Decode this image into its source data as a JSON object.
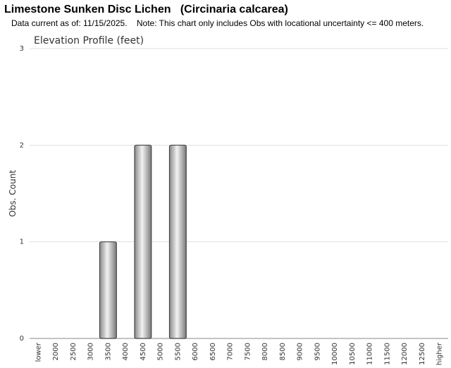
{
  "header": {
    "title": "Limestone Sunken Disc Lichen   (Circinaria calcarea)",
    "subtitle": "Data current as of: 11/15/2025.    Note: This chart only includes Obs with locational uncertainty <= 400 meters."
  },
  "chart_data": {
    "type": "bar",
    "title": "Elevation Profile (feet)",
    "y_label": "Obs. Count",
    "categories": [
      "lower",
      "2000",
      "2500",
      "3000",
      "3500",
      "4000",
      "4500",
      "5000",
      "5500",
      "6000",
      "6500",
      "7000",
      "7500",
      "8000",
      "8500",
      "9000",
      "9500",
      "10000",
      "10500",
      "11000",
      "11500",
      "12000",
      "12500",
      "higher"
    ],
    "values": [
      0,
      0,
      0,
      0,
      1,
      0,
      2,
      0,
      2,
      0,
      0,
      0,
      0,
      0,
      0,
      0,
      0,
      0,
      0,
      0,
      0,
      0,
      0,
      0
    ],
    "color": "#b0b0b0",
    "ylim": [
      0,
      3
    ],
    "yticks": [
      0,
      1,
      2,
      3
    ],
    "grid": true
  }
}
